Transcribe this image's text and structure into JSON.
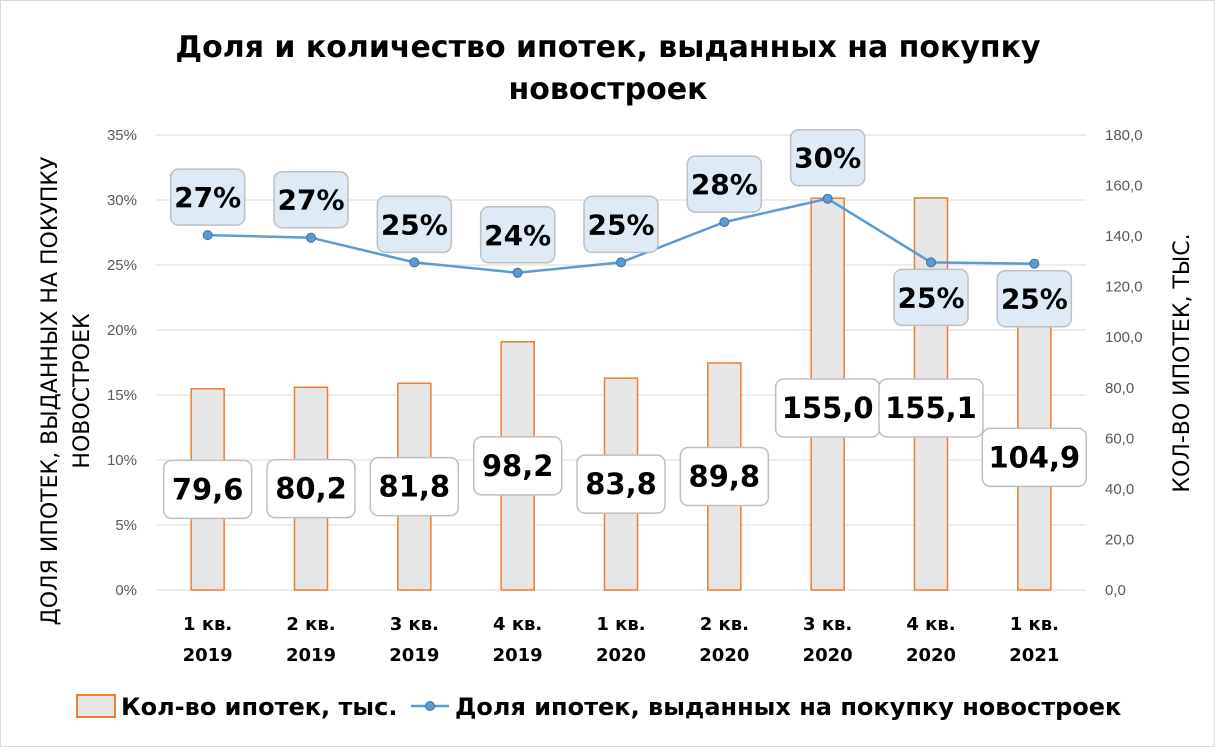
{
  "chart_data": {
    "type": "bar+line",
    "title_lines": [
      "Доля и количество ипотек, выданных на покупку",
      "новостроек"
    ],
    "categories": [
      [
        "1 кв.",
        "2019"
      ],
      [
        "2 кв.",
        "2019"
      ],
      [
        "3 кв.",
        "2019"
      ],
      [
        "4 кв.",
        "2019"
      ],
      [
        "1 кв.",
        "2020"
      ],
      [
        "2 кв.",
        "2020"
      ],
      [
        "3 кв.",
        "2020"
      ],
      [
        "4 кв.",
        "2020"
      ],
      [
        "1 кв.",
        "2021"
      ]
    ],
    "y_left": {
      "label_lines": [
        "ДОЛЯ ИПОТЕК, ВЫДАННЫХ НА ПОКУПКУ",
        "НОВОСТРОЕК"
      ],
      "min": 0,
      "max": 35,
      "step": 5,
      "ticks": [
        "0%",
        "5%",
        "10%",
        "15%",
        "20%",
        "25%",
        "30%",
        "35%"
      ]
    },
    "y_right": {
      "label": "КОЛ-ВО ИПОТЕК, ТЫС.",
      "min": 0,
      "max": 180,
      "step": 20,
      "ticks": [
        "0,0",
        "20,0",
        "40,0",
        "60,0",
        "80,0",
        "100,0",
        "120,0",
        "140,0",
        "160,0",
        "180,0"
      ]
    },
    "series": [
      {
        "name": "Кол-во ипотек, тыс.",
        "type": "bar",
        "axis": "right",
        "values": [
          79.6,
          80.2,
          81.8,
          98.2,
          83.8,
          89.8,
          155.0,
          155.1,
          104.9
        ],
        "labels": [
          "79,6",
          "80,2",
          "81,8",
          "98,2",
          "83,8",
          "89,8",
          "155,0",
          "155,1",
          "104,9"
        ],
        "fill": "#e7e6e6",
        "stroke": "#ed7d31"
      },
      {
        "name": "Доля ипотек, выданных на покупку новостроек",
        "type": "line",
        "axis": "left",
        "values": [
          27.3,
          27.1,
          25.2,
          24.4,
          25.2,
          28.3,
          30.1,
          25.2,
          25.1
        ],
        "labels": [
          "27%",
          "27%",
          "25%",
          "24%",
          "25%",
          "28%",
          "30%",
          "25%",
          "25%"
        ],
        "color": "#5b9bd5"
      }
    ],
    "legend_position": "bottom",
    "grid": true
  }
}
